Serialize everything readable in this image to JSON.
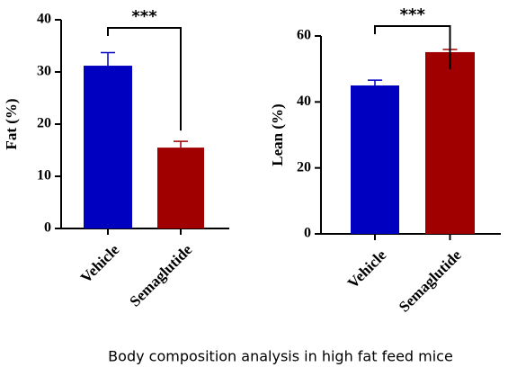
{
  "chart_data": [
    {
      "type": "bar",
      "y_label": "Fat (%)",
      "categories": [
        "Vehicle",
        "Semaglutide"
      ],
      "values": [
        31.2,
        15.5
      ],
      "errors": [
        2.5,
        1.2
      ],
      "colors": [
        "#0000c0",
        "#a00000"
      ],
      "ylim": [
        0,
        40
      ],
      "yticks": [
        0,
        10,
        20,
        30,
        40
      ],
      "annotation": "***"
    },
    {
      "type": "bar",
      "y_label": "Lean (%)",
      "categories": [
        "Vehicle",
        "Semaglutide"
      ],
      "values": [
        45.0,
        55.1
      ],
      "errors": [
        1.6,
        0.8
      ],
      "colors": [
        "#0000c0",
        "#a00000"
      ],
      "ylim": [
        0,
        60
      ],
      "yticks": [
        0,
        20,
        40,
        60
      ],
      "annotation": "***"
    }
  ],
  "caption": "Body composition analysis in high fat feed mice"
}
